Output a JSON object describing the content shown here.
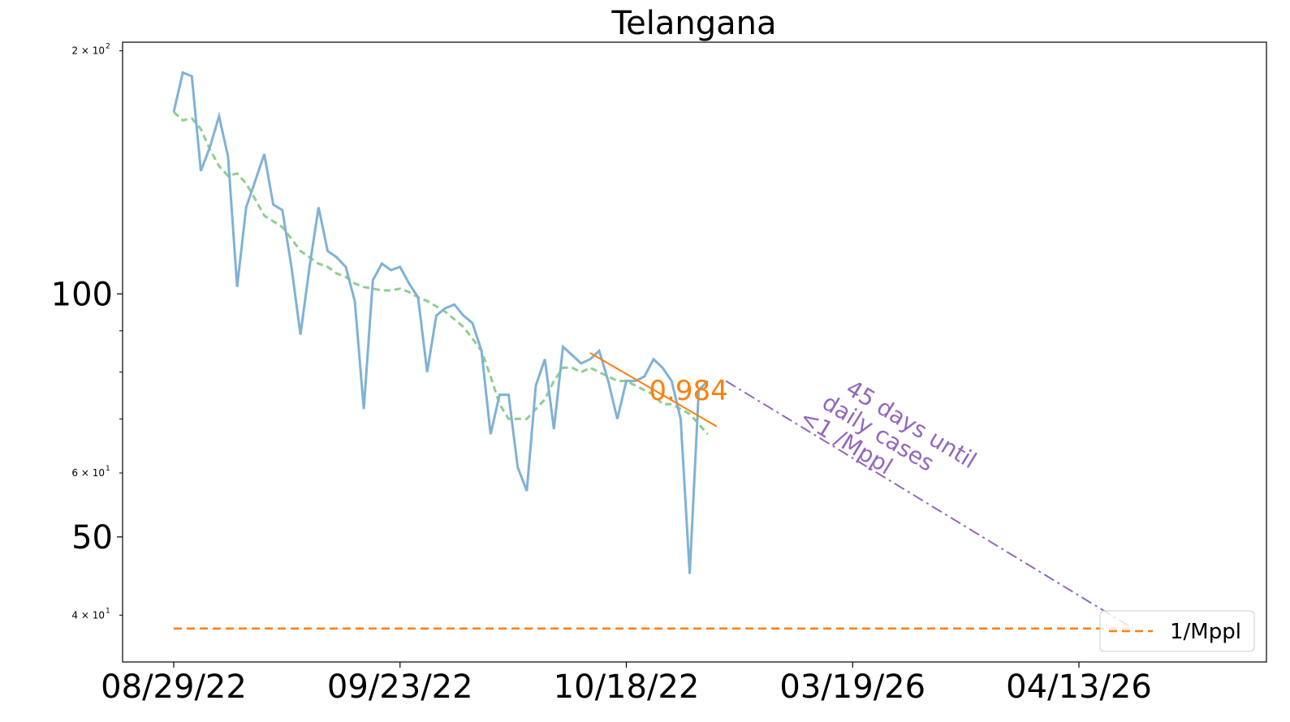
{
  "chart_data": {
    "type": "line",
    "title": "Telangana",
    "xlabel": "",
    "ylabel": "",
    "y_scale": "log",
    "ylim": [
      35,
      205
    ],
    "x_tick_labels": [
      "08/29/22",
      "09/23/22",
      "10/18/22",
      "03/19/26",
      "04/13/26"
    ],
    "y_major_ticks": [
      {
        "value": 100,
        "label": "100"
      },
      {
        "value": 50,
        "label": "50"
      }
    ],
    "y_minor_ticks": [
      {
        "value": 200,
        "label": "2 × 10",
        "exp": "2"
      },
      {
        "value": 60,
        "label": "6 × 10",
        "exp": "1"
      },
      {
        "value": 40,
        "label": "4 × 10",
        "exp": "1"
      }
    ],
    "y_minor_unlabeled": [
      90,
      80,
      70
    ],
    "series": [
      {
        "role": "daily",
        "color": "#7fb2d6",
        "values": [
          168,
          188,
          186,
          142,
          152,
          166,
          148,
          102,
          128,
          138,
          149,
          129,
          127,
          108,
          89,
          108,
          128,
          113,
          111,
          108,
          98,
          72,
          104,
          109,
          107,
          108,
          103,
          99,
          80,
          94,
          96,
          97,
          94,
          92,
          85,
          67,
          75,
          75,
          61,
          57,
          77,
          83,
          68,
          86,
          84,
          82,
          83,
          85,
          78,
          70,
          78,
          78,
          79,
          83,
          81,
          78,
          70,
          45,
          76,
          78
        ]
      },
      {
        "role": "7-day average",
        "color": "#8ecf8e",
        "values": [
          168,
          164,
          165,
          160,
          151,
          144,
          140,
          141,
          137,
          131,
          125,
          123,
          121,
          117,
          113,
          111,
          109,
          108,
          106,
          105,
          103,
          102,
          101.5,
          101,
          101,
          101.5,
          100.5,
          99,
          98,
          96.5,
          95,
          93,
          91,
          88,
          85,
          79,
          73,
          70,
          70,
          70,
          72,
          74,
          78,
          81,
          81,
          80,
          81,
          80,
          79,
          78,
          78,
          77,
          76,
          75,
          73,
          73,
          72,
          71,
          69,
          67
        ]
      }
    ],
    "fit": {
      "label": "0.984",
      "color": "#ff7f0e",
      "start_day": 46,
      "end_day": 60,
      "start_value": 84.5,
      "end_value": 68.5
    },
    "projection": {
      "color": "#9467bd",
      "start_day": 61,
      "start_value": 78,
      "days": 45,
      "end_value": 38.5
    },
    "threshold": {
      "value": 38.5,
      "color": "#ff7f0e",
      "legend": "1/Mppl"
    },
    "annotation": [
      "45 days until",
      "daily cases",
      "<1 /Mppl"
    ],
    "legend_position": "bottom-right"
  }
}
